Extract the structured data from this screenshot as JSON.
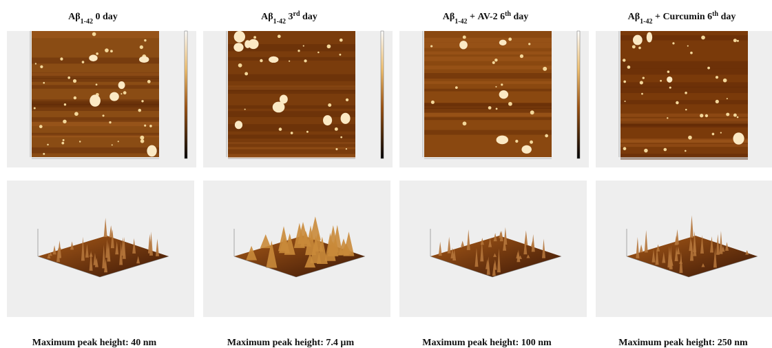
{
  "columns": [
    {
      "title": [
        {
          "text": "Aβ",
          "style": "normal"
        },
        {
          "text": "1-42",
          "style": "sub"
        },
        {
          "text": " 0 day",
          "style": "normal"
        }
      ],
      "caption": "Maximum peak height: 40 nm"
    },
    {
      "title": [
        {
          "text": "Aβ",
          "style": "normal"
        },
        {
          "text": "1-42",
          "style": "sub"
        },
        {
          "text": " 3",
          "style": "normal"
        },
        {
          "text": "rd",
          "style": "sup"
        },
        {
          "text": " day",
          "style": "normal"
        }
      ],
      "caption": "Maximum peak height: 7.4 µm"
    },
    {
      "title": [
        {
          "text": "Aβ",
          "style": "normal"
        },
        {
          "text": "1-42",
          "style": "sub"
        },
        {
          "text": " + AV-2 6",
          "style": "normal"
        },
        {
          "text": "th",
          "style": "sup"
        },
        {
          "text": " day",
          "style": "normal"
        }
      ],
      "caption": "Maximum peak height: 100 nm"
    },
    {
      "title": [
        {
          "text": "Aβ",
          "style": "normal"
        },
        {
          "text": "1-42",
          "style": "sub"
        },
        {
          "text": " + Curcumin 6",
          "style": "normal"
        },
        {
          "text": "th",
          "style": "sup"
        },
        {
          "text": " day",
          "style": "normal"
        }
      ],
      "caption": "Maximum peak height: 250 nm"
    }
  ]
}
